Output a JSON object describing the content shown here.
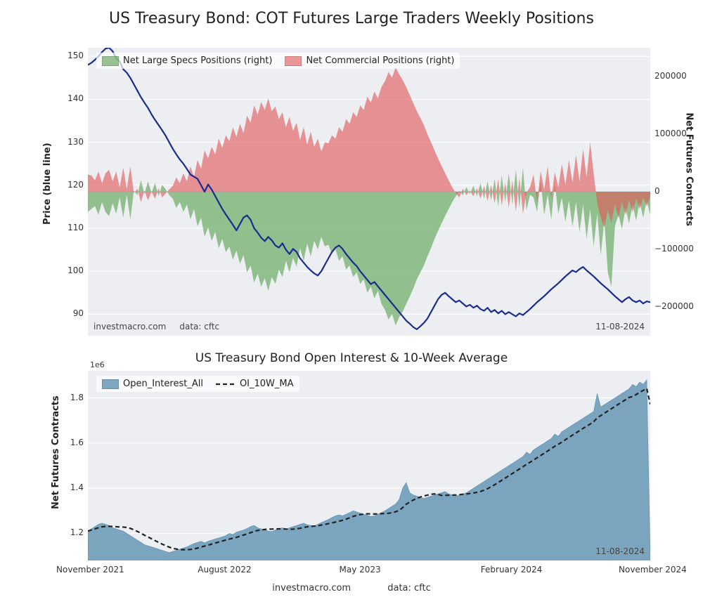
{
  "title": "US Treasury Bond: COT Futures Large Traders Weekly Positions",
  "date_stamp": "11-08-2024",
  "credit_source": "investmacro.com",
  "credit_data": "data: cftc",
  "panel1": {
    "type": "line+area-dual-axis",
    "bg": "#eceef2",
    "grid_color": "#ffffff",
    "left_axis": {
      "label": "Price (blue line)",
      "min": 85,
      "max": 152,
      "ticks": [
        90,
        100,
        110,
        120,
        130,
        140,
        150
      ],
      "label_fontsize": 13,
      "tick_fontsize": 12
    },
    "right_axis": {
      "label": "Net Futures Contracts",
      "min": -250000,
      "max": 250000,
      "ticks": [
        -200000,
        -100000,
        0,
        100000,
        200000
      ],
      "tick_labels": [
        "−200000",
        "−100000",
        "0",
        "100000",
        "200000"
      ],
      "label_fontsize": 13,
      "tick_fontsize": 12
    },
    "x_n": 160,
    "legend": [
      {
        "label": "Net Large Specs Positions (right)",
        "color": "#59a14f",
        "alpha": 0.62
      },
      {
        "label": "Net Commercial Positions (right)",
        "color": "#e15759",
        "alpha": 0.62
      }
    ],
    "series": {
      "specs_color": "#59a14f",
      "commercial_color": "#e15759",
      "area_alpha": 0.62,
      "price_color": "#1b2c8f",
      "price_width": 2.2,
      "specs": [
        -35000,
        -30000,
        -25000,
        -40000,
        -18000,
        -35000,
        -42000,
        -20000,
        -38000,
        -10000,
        -45000,
        -5000,
        -48000,
        2000,
        -6000,
        20000,
        -4000,
        18000,
        -2000,
        15000,
        -8000,
        12000,
        4000,
        -6000,
        -12000,
        -28000,
        -18000,
        -35000,
        -22000,
        -48000,
        -30000,
        -60000,
        -45000,
        -78000,
        -62000,
        -85000,
        -70000,
        -98000,
        -82000,
        -105000,
        -95000,
        -118000,
        -102000,
        -125000,
        -110000,
        -140000,
        -128000,
        -158000,
        -142000,
        -165000,
        -150000,
        -172000,
        -148000,
        -160000,
        -135000,
        -148000,
        -120000,
        -140000,
        -115000,
        -130000,
        -98000,
        -120000,
        -90000,
        -112000,
        -85000,
        -100000,
        -78000,
        -95000,
        -92000,
        -108000,
        -100000,
        -120000,
        -112000,
        -135000,
        -128000,
        -148000,
        -140000,
        -160000,
        -152000,
        -175000,
        -165000,
        -185000,
        -172000,
        -195000,
        -205000,
        -222000,
        -212000,
        -232000,
        -218000,
        -208000,
        -195000,
        -182000,
        -168000,
        -152000,
        -140000,
        -128000,
        -112000,
        -98000,
        -82000,
        -68000,
        -55000,
        -42000,
        -30000,
        -18000,
        -8000,
        2000,
        -6000,
        8000,
        -4000,
        10000,
        -8000,
        15000,
        -12000,
        18000,
        -15000,
        22000,
        -25000,
        28000,
        -18000,
        32000,
        -22000,
        38000,
        -28000,
        42000,
        -32000,
        -5000,
        -10000,
        -35000,
        20000,
        -40000,
        -5000,
        -48000,
        15000,
        -38000,
        -10000,
        -52000,
        -15000,
        -60000,
        -18000,
        -70000,
        -22000,
        -82000,
        -30000,
        -95000,
        -38000,
        -110000,
        -48000,
        -140000,
        -165000,
        -60000,
        -40000,
        -65000,
        -28000,
        -55000,
        -22000,
        -50000,
        -18000,
        -45000,
        -15000,
        -40000
      ],
      "commercial": [
        30000,
        28000,
        20000,
        35000,
        15000,
        32000,
        38000,
        18000,
        35000,
        8000,
        42000,
        4000,
        44000,
        -2000,
        5000,
        -18000,
        2000,
        -15000,
        0,
        -12000,
        6000,
        -10000,
        -3000,
        4000,
        10000,
        25000,
        15000,
        32000,
        18000,
        44000,
        26000,
        55000,
        40000,
        72000,
        58000,
        78000,
        65000,
        92000,
        76000,
        98000,
        88000,
        112000,
        95000,
        118000,
        102000,
        132000,
        120000,
        150000,
        134000,
        156000,
        142000,
        162000,
        140000,
        148000,
        126000,
        138000,
        112000,
        130000,
        106000,
        120000,
        90000,
        112000,
        82000,
        104000,
        78000,
        92000,
        70000,
        86000,
        84000,
        98000,
        92000,
        112000,
        104000,
        126000,
        118000,
        138000,
        130000,
        150000,
        142000,
        165000,
        155000,
        174000,
        162000,
        182000,
        192000,
        208000,
        198000,
        216000,
        204000,
        194000,
        182000,
        168000,
        154000,
        140000,
        128000,
        116000,
        100000,
        86000,
        72000,
        58000,
        45000,
        32000,
        20000,
        8000,
        -2000,
        -10000,
        5000,
        -6000,
        2000,
        -8000,
        6000,
        -12000,
        10000,
        -16000,
        12000,
        -20000,
        22000,
        -24000,
        16000,
        -28000,
        20000,
        -34000,
        24000,
        -38000,
        -2000,
        8000,
        30000,
        -18000,
        36000,
        4000,
        44000,
        -12000,
        34000,
        8000,
        48000,
        12000,
        55000,
        16000,
        64000,
        18000,
        74000,
        25000,
        86000,
        32000,
        -20000,
        -45000,
        -62000,
        -32000,
        -54000,
        -22000,
        -45000,
        -18000,
        -40000,
        -15000,
        -35000,
        -12000,
        -30000,
        -10000,
        -25000,
        -8000
      ],
      "price": [
        148,
        148.5,
        149.2,
        150,
        151,
        151.8,
        152,
        151.2,
        149.5,
        148.8,
        147,
        146.2,
        145,
        143.5,
        142,
        140.5,
        139.2,
        138,
        136.5,
        135.2,
        134,
        132.8,
        131.5,
        130,
        128.5,
        127.2,
        126,
        125,
        123.8,
        122.5,
        122,
        121.5,
        120,
        118.5,
        120.2,
        119,
        117.5,
        116,
        114.5,
        113.2,
        112,
        110.8,
        109.5,
        111,
        112.5,
        113,
        112,
        110,
        109,
        107.8,
        107,
        108,
        107.2,
        106,
        105.5,
        106.5,
        105,
        104,
        105.2,
        104.5,
        103,
        102,
        101,
        100.2,
        99.5,
        99,
        100,
        101.5,
        103,
        104.5,
        105.5,
        106,
        105.2,
        104,
        103,
        102,
        101.2,
        100,
        99,
        98,
        97,
        97.5,
        96.5,
        95.5,
        94.5,
        93.5,
        92.5,
        91.5,
        90.5,
        89.5,
        88.5,
        87.8,
        87,
        86.5,
        87.2,
        88,
        89,
        90.5,
        92,
        93.5,
        94.5,
        95,
        94.2,
        93.5,
        92.8,
        93.2,
        92.5,
        91.8,
        92.2,
        91.5,
        92,
        91.2,
        90.8,
        91.5,
        90.5,
        91,
        90.2,
        90.8,
        90,
        90.5,
        90,
        89.5,
        90.2,
        89.8,
        90.5,
        91.2,
        92,
        92.8,
        93.5,
        94.2,
        95,
        95.8,
        96.5,
        97.2,
        98,
        98.8,
        99.5,
        100.2,
        99.8,
        100.5,
        101,
        100.2,
        99.5,
        98.8,
        98,
        97.2,
        96.5,
        95.8,
        95,
        94.2,
        93.5,
        92.8,
        93.5,
        94,
        93.2,
        92.8,
        93.2,
        92.5,
        93,
        92.8
      ]
    }
  },
  "panel2": {
    "type": "area+line",
    "title": "US Treasury Bond Open Interest & 10-Week Average",
    "bg": "#eceef2",
    "grid_color": "#ffffff",
    "scale_exp_label": "1e6",
    "y_axis": {
      "label": "Net Futures Contracts",
      "min": 1.08,
      "max": 1.92,
      "ticks": [
        1.2,
        1.4,
        1.6,
        1.8
      ],
      "label_fontsize": 13,
      "tick_fontsize": 12
    },
    "x_axis": {
      "ticks": [
        "November 2021",
        "August 2022",
        "May 2023",
        "February 2024",
        "November 2024"
      ],
      "positions": [
        0,
        40,
        80,
        120,
        159
      ]
    },
    "x_n": 160,
    "legend": [
      {
        "label": "Open_Interest_All",
        "color": "#5b8fb0",
        "alpha": 0.78,
        "type": "area"
      },
      {
        "label": "OI_10W_MA",
        "color": "#222222",
        "type": "dash"
      }
    ],
    "series": {
      "oi_color": "#5b8fb0",
      "oi_alpha": 0.78,
      "ma_color": "#222222",
      "ma_dash": "6,4",
      "ma_width": 2.2,
      "oi": [
        1.21,
        1.22,
        1.23,
        1.24,
        1.245,
        1.24,
        1.235,
        1.225,
        1.22,
        1.215,
        1.21,
        1.2,
        1.19,
        1.18,
        1.17,
        1.16,
        1.15,
        1.145,
        1.14,
        1.135,
        1.13,
        1.125,
        1.12,
        1.115,
        1.12,
        1.125,
        1.13,
        1.135,
        1.14,
        1.148,
        1.155,
        1.16,
        1.165,
        1.158,
        1.165,
        1.17,
        1.175,
        1.18,
        1.185,
        1.19,
        1.2,
        1.195,
        1.205,
        1.21,
        1.215,
        1.222,
        1.23,
        1.235,
        1.225,
        1.22,
        1.215,
        1.21,
        1.208,
        1.215,
        1.22,
        1.225,
        1.218,
        1.225,
        1.23,
        1.235,
        1.24,
        1.245,
        1.238,
        1.235,
        1.232,
        1.24,
        1.248,
        1.255,
        1.262,
        1.27,
        1.278,
        1.282,
        1.278,
        1.285,
        1.292,
        1.3,
        1.295,
        1.29,
        1.285,
        1.28,
        1.275,
        1.278,
        1.285,
        1.292,
        1.3,
        1.31,
        1.32,
        1.33,
        1.35,
        1.4,
        1.425,
        1.38,
        1.37,
        1.365,
        1.36,
        1.355,
        1.36,
        1.365,
        1.37,
        1.375,
        1.38,
        1.385,
        1.375,
        1.37,
        1.365,
        1.37,
        1.375,
        1.38,
        1.39,
        1.4,
        1.41,
        1.42,
        1.43,
        1.44,
        1.45,
        1.46,
        1.47,
        1.48,
        1.49,
        1.5,
        1.51,
        1.52,
        1.53,
        1.54,
        1.56,
        1.55,
        1.57,
        1.58,
        1.59,
        1.6,
        1.61,
        1.62,
        1.64,
        1.63,
        1.65,
        1.66,
        1.67,
        1.68,
        1.69,
        1.7,
        1.71,
        1.72,
        1.73,
        1.74,
        1.82,
        1.76,
        1.77,
        1.78,
        1.79,
        1.8,
        1.81,
        1.82,
        1.83,
        1.84,
        1.86,
        1.85,
        1.87,
        1.86,
        1.88,
        1.1
      ]
    }
  }
}
